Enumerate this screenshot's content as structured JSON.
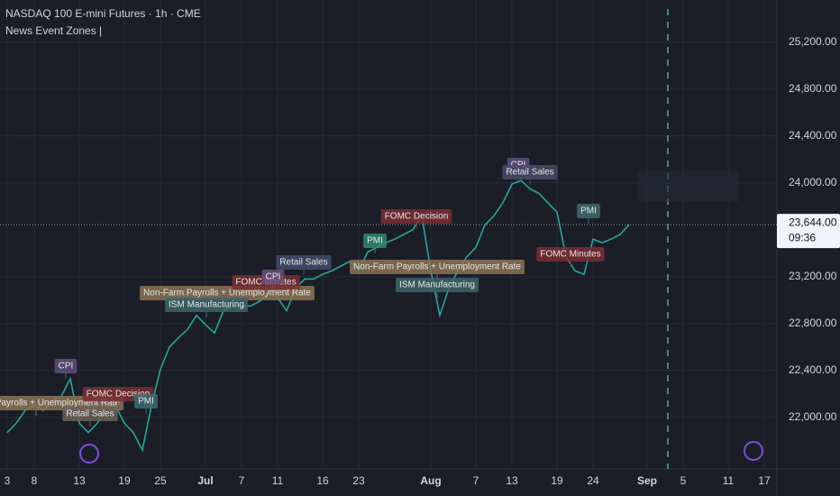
{
  "chart_data": {
    "type": "line",
    "title": "NASDAQ 100 E-mini Futures · 1h · CME",
    "subtitle": "News Event Zones |",
    "categories": [
      "3",
      null,
      null,
      "8",
      null,
      null,
      null,
      null,
      "13",
      null,
      null,
      null,
      null,
      "19",
      null,
      null,
      null,
      "25",
      null,
      null,
      null,
      null,
      "Jul",
      null,
      null,
      null,
      "7",
      null,
      null,
      null,
      "11",
      null,
      null,
      null,
      null,
      "16",
      null,
      null,
      null,
      "23",
      null,
      null,
      null,
      null,
      null,
      null,
      null,
      "Aug",
      null,
      null,
      null,
      null,
      "7",
      null,
      null,
      null,
      "13",
      null,
      null,
      null,
      null,
      "19",
      null,
      null,
      null,
      "24",
      null,
      null,
      null,
      null,
      null,
      "Sep",
      null,
      null,
      null,
      "5",
      null,
      null,
      null,
      null,
      "11",
      null,
      null,
      null,
      "17",
      null
    ],
    "series": [
      {
        "color": "#26a69a",
        "values": [
          21870,
          21950,
          22060,
          22100,
          22060,
          22140,
          22180,
          22330,
          21950,
          21870,
          21950,
          22060,
          22100,
          21950,
          21870,
          21720,
          22100,
          22410,
          22600,
          22680,
          22750,
          22870,
          22790,
          22720,
          22910,
          22950,
          22950,
          22950,
          22990,
          23060,
          23020,
          22910,
          23100,
          23180,
          23180,
          23220,
          23250,
          23290,
          23330,
          23250,
          23410,
          23450,
          23490,
          23520,
          23560,
          23600,
          23720,
          23250,
          22870,
          23100,
          23250,
          23370,
          23450,
          23640,
          23720,
          23830,
          23990,
          24020,
          23950,
          23910,
          23830,
          23750,
          23370,
          23250,
          23220,
          23520,
          23490,
          23520,
          23560,
          23644,
          null,
          null,
          null,
          null,
          null,
          null,
          null,
          null,
          null,
          null,
          null,
          null,
          null,
          null,
          null,
          null
        ]
      }
    ],
    "ylim": [
      21560,
      25560
    ],
    "yticks": [
      {
        "value": 22000,
        "label": "22,000.00"
      },
      {
        "value": 22400,
        "label": "22,400.00"
      },
      {
        "value": 22800,
        "label": "22,800.00"
      },
      {
        "value": 23200,
        "label": "23,200.00"
      },
      {
        "value": 24000,
        "label": "24,000.00"
      },
      {
        "value": 24400,
        "label": "24,400.00"
      },
      {
        "value": 24800,
        "label": "24,800.00"
      },
      {
        "value": 25200,
        "label": "25,200.00"
      }
    ],
    "last_price": {
      "value": 23644,
      "label": "23,644.00"
    },
    "countdown": "09:36",
    "grid": true,
    "events": [
      {
        "label": "Non-Farm Payrolls + Unemployment Rate",
        "color": "#8a7355"
      },
      {
        "label": "CPI",
        "color": "#5d4f7e"
      },
      {
        "label": "Retail Sales",
        "color": "#6b6258"
      },
      {
        "label": "FOMC Decision",
        "color": "#7a2e33"
      },
      {
        "label": "PMI",
        "color": "#3d6b6e"
      },
      {
        "label": "Non-Farm Payrolls + Unemployment Rate",
        "color": "#8a7355"
      },
      {
        "label": "ISM Manufacturing",
        "color": "#3d6469"
      },
      {
        "label": "FOMC Minutes",
        "color": "#7a2e33"
      },
      {
        "label": "CPI",
        "color": "#6a4f7e"
      },
      {
        "label": "Retail Sales",
        "color": "#3f4d6b"
      },
      {
        "label": "PMI",
        "color": "#2f8a6a"
      },
      {
        "label": "FOMC Decision",
        "color": "#7a2e33"
      },
      {
        "label": "Non-Farm Payrolls + Unemployment Rate",
        "color": "#8a7355"
      },
      {
        "label": "ISM Manufacturing",
        "color": "#3d6469"
      },
      {
        "label": "CPI",
        "color": "#5d4f7e"
      },
      {
        "label": "Retail Sales",
        "color": "#4a4a66"
      },
      {
        "label": "PMI",
        "color": "#3d6b6e"
      },
      {
        "label": "FOMC Minutes",
        "color": "#7a2e33"
      }
    ]
  }
}
